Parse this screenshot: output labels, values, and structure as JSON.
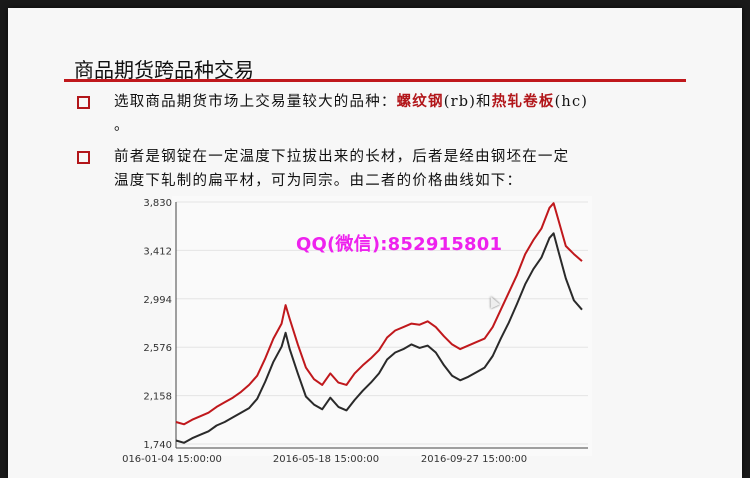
{
  "slide": {
    "title": "商品期货跨品种交易",
    "bullet1": {
      "prefix": "选取商品期货市场上交易量较大的品种：",
      "item1": "螺纹钢",
      "code1": "(rb)和",
      "item2": "热轧卷板",
      "code2": "(hc)",
      "tail": "。"
    },
    "bullet2": {
      "line1": "前者是钢锭在一定温度下拉拔出来的长材，后者是经由钢坯在一定",
      "line2": "温度下轧制的扁平材，可为同宗。由二者的价格曲线如下："
    },
    "watermark": "QQ(微信):852915801"
  },
  "colors": {
    "accent": "#c0181c",
    "rb_line": "#c0181c",
    "hc_line": "#2a2a2a",
    "watermark": "#ee22ee"
  },
  "chart_data": {
    "type": "line",
    "y_ticks": [
      "3,830",
      "3,412",
      "2,994",
      "2,576",
      "2,158",
      "1,740"
    ],
    "x_ticks": [
      "016-01-04 15:00:00",
      "2016-05-18 15:00:00",
      "2016-09-27 15:00:00"
    ],
    "ylim": [
      1740,
      3830
    ],
    "x_range": [
      0,
      100
    ],
    "grid": "horizontal",
    "series": [
      {
        "key": "rb",
        "values": [
          [
            0,
            1930
          ],
          [
            2,
            1910
          ],
          [
            4,
            1950
          ],
          [
            6,
            1980
          ],
          [
            8,
            2010
          ],
          [
            10,
            2060
          ],
          [
            12,
            2100
          ],
          [
            14,
            2140
          ],
          [
            16,
            2190
          ],
          [
            18,
            2250
          ],
          [
            20,
            2330
          ],
          [
            22,
            2480
          ],
          [
            24,
            2650
          ],
          [
            26,
            2780
          ],
          [
            27,
            2940
          ],
          [
            28,
            2820
          ],
          [
            30,
            2600
          ],
          [
            32,
            2400
          ],
          [
            34,
            2300
          ],
          [
            36,
            2250
          ],
          [
            38,
            2350
          ],
          [
            40,
            2270
          ],
          [
            42,
            2250
          ],
          [
            44,
            2350
          ],
          [
            46,
            2420
          ],
          [
            48,
            2480
          ],
          [
            50,
            2550
          ],
          [
            52,
            2660
          ],
          [
            54,
            2720
          ],
          [
            56,
            2750
          ],
          [
            58,
            2780
          ],
          [
            60,
            2770
          ],
          [
            62,
            2800
          ],
          [
            64,
            2750
          ],
          [
            66,
            2670
          ],
          [
            68,
            2600
          ],
          [
            70,
            2560
          ],
          [
            72,
            2590
          ],
          [
            74,
            2620
          ],
          [
            76,
            2650
          ],
          [
            78,
            2750
          ],
          [
            80,
            2900
          ],
          [
            82,
            3050
          ],
          [
            84,
            3200
          ],
          [
            86,
            3380
          ],
          [
            88,
            3500
          ],
          [
            90,
            3600
          ],
          [
            92,
            3780
          ],
          [
            93,
            3820
          ],
          [
            94,
            3700
          ],
          [
            96,
            3450
          ],
          [
            98,
            3380
          ],
          [
            100,
            3320
          ]
        ]
      },
      {
        "key": "hc",
        "values": [
          [
            0,
            1770
          ],
          [
            2,
            1750
          ],
          [
            4,
            1790
          ],
          [
            6,
            1820
          ],
          [
            8,
            1850
          ],
          [
            10,
            1900
          ],
          [
            12,
            1930
          ],
          [
            14,
            1970
          ],
          [
            16,
            2010
          ],
          [
            18,
            2050
          ],
          [
            20,
            2130
          ],
          [
            22,
            2280
          ],
          [
            24,
            2450
          ],
          [
            26,
            2580
          ],
          [
            27,
            2700
          ],
          [
            28,
            2560
          ],
          [
            30,
            2350
          ],
          [
            32,
            2150
          ],
          [
            34,
            2080
          ],
          [
            36,
            2040
          ],
          [
            38,
            2140
          ],
          [
            40,
            2060
          ],
          [
            42,
            2030
          ],
          [
            44,
            2120
          ],
          [
            46,
            2200
          ],
          [
            48,
            2270
          ],
          [
            50,
            2350
          ],
          [
            52,
            2470
          ],
          [
            54,
            2530
          ],
          [
            56,
            2560
          ],
          [
            58,
            2600
          ],
          [
            60,
            2570
          ],
          [
            62,
            2590
          ],
          [
            64,
            2530
          ],
          [
            66,
            2420
          ],
          [
            68,
            2330
          ],
          [
            70,
            2290
          ],
          [
            72,
            2320
          ],
          [
            74,
            2360
          ],
          [
            76,
            2400
          ],
          [
            78,
            2500
          ],
          [
            80,
            2650
          ],
          [
            82,
            2790
          ],
          [
            84,
            2950
          ],
          [
            86,
            3120
          ],
          [
            88,
            3250
          ],
          [
            90,
            3350
          ],
          [
            92,
            3520
          ],
          [
            93,
            3560
          ],
          [
            94,
            3430
          ],
          [
            96,
            3170
          ],
          [
            98,
            2980
          ],
          [
            100,
            2900
          ]
        ]
      }
    ]
  }
}
